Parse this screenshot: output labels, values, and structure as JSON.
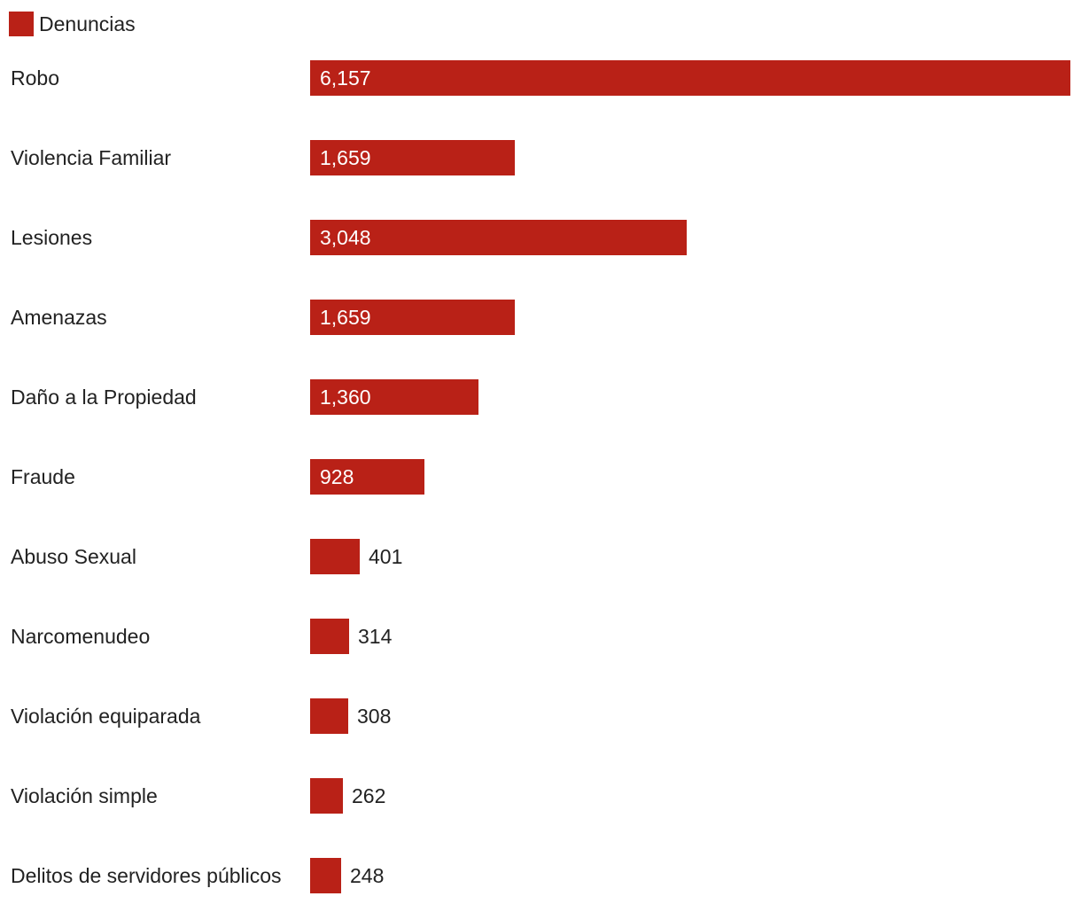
{
  "chart_data": {
    "type": "bar",
    "orientation": "horizontal",
    "categories": [
      "Robo",
      "Violencia Familiar",
      "Lesiones",
      "Amenazas",
      "Daño a la Propiedad",
      "Fraude",
      "Abuso Sexual",
      "Narcomenudeo",
      "Violación equiparada",
      "Violación simple",
      "Delitos de servidores públicos"
    ],
    "series": [
      {
        "name": "Denuncias",
        "color": "#b92117",
        "values": [
          6157,
          1659,
          3048,
          1659,
          1360,
          928,
          401,
          314,
          308,
          262,
          248
        ]
      }
    ],
    "value_labels": [
      "6,157",
      "1,659",
      "3,048",
      "1,659",
      "1,360",
      "928",
      "401",
      "314",
      "308",
      "262",
      "248"
    ],
    "legend_position": "top-left",
    "grid": false,
    "xlim": [
      0,
      6157
    ]
  }
}
